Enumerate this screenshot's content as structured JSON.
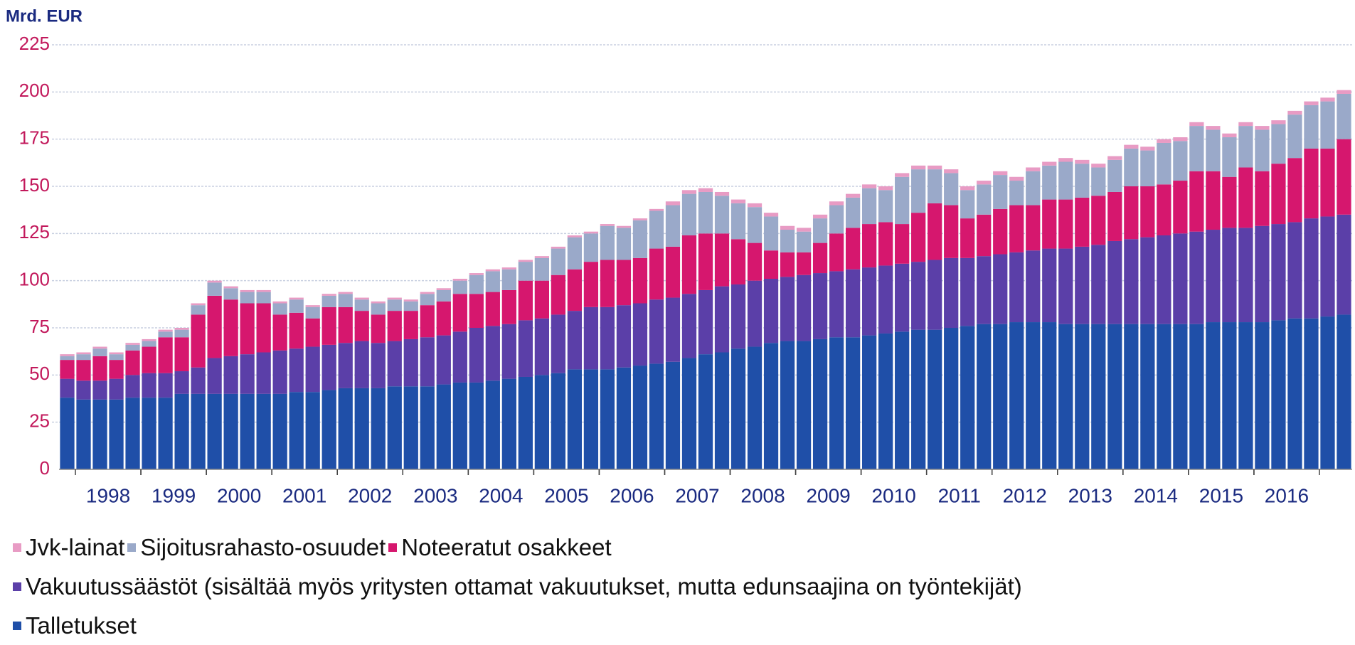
{
  "chart_data": {
    "type": "stacked_bar",
    "y_label": "Mrd. EUR",
    "ylim": [
      0,
      225
    ],
    "yticks": [
      0,
      25,
      50,
      75,
      100,
      125,
      150,
      175,
      200,
      225
    ],
    "grid": true,
    "categories": [
      null,
      "1998",
      null,
      null,
      null,
      "1999",
      null,
      null,
      null,
      "2000",
      null,
      null,
      null,
      "2001",
      null,
      null,
      null,
      "2002",
      null,
      null,
      null,
      "2003",
      null,
      null,
      null,
      "2004",
      null,
      null,
      null,
      "2005",
      null,
      null,
      null,
      "2006",
      null,
      null,
      null,
      "2007",
      null,
      null,
      null,
      "2008",
      null,
      null,
      null,
      "2009",
      null,
      null,
      null,
      "2010",
      null,
      null,
      null,
      "2011",
      null,
      null,
      null,
      "2012",
      null,
      null,
      null,
      "2013",
      null,
      null,
      null,
      "2014",
      null,
      null,
      null,
      "2015",
      null,
      null,
      null,
      "2016",
      null,
      null,
      null,
      null,
      null
    ],
    "series": [
      {
        "name": "Talletukset",
        "color": "#1f4fa8",
        "values": [
          38,
          37,
          37,
          37,
          38,
          38,
          38,
          40,
          40,
          40,
          40,
          40,
          40,
          40,
          41,
          41,
          42,
          43,
          43,
          43,
          44,
          44,
          44,
          45,
          46,
          46,
          47,
          48,
          49,
          50,
          51,
          53,
          53,
          53,
          54,
          55,
          56,
          57,
          59,
          61,
          62,
          64,
          65,
          67,
          68,
          68,
          69,
          70,
          70,
          71,
          72,
          73,
          74,
          74,
          75,
          76,
          77,
          77,
          78,
          78,
          78,
          77,
          77,
          77,
          77,
          77,
          77,
          77,
          77,
          77,
          78,
          78,
          78,
          78,
          79,
          80,
          80,
          81,
          82
        ]
      },
      {
        "name": "Vakuutussäästöt (sisältää myös yritysten ottamat vakuutukset, mutta edunsaajina on työntekijät)",
        "color": "#5b3fa8",
        "values": [
          10,
          10,
          10,
          11,
          12,
          13,
          13,
          12,
          14,
          19,
          20,
          21,
          22,
          23,
          23,
          24,
          24,
          24,
          25,
          24,
          24,
          25,
          26,
          26,
          27,
          29,
          29,
          29,
          30,
          30,
          31,
          31,
          33,
          33,
          33,
          33,
          34,
          34,
          34,
          34,
          35,
          34,
          35,
          34,
          34,
          35,
          35,
          35,
          36,
          36,
          36,
          36,
          36,
          37,
          37,
          36,
          36,
          37,
          37,
          38,
          39,
          40,
          41,
          42,
          44,
          45,
          46,
          47,
          48,
          49,
          49,
          50,
          50,
          51,
          51,
          51,
          53,
          53,
          53
        ]
      },
      {
        "name": "Noteeratut osakkeet",
        "color": "#d6176e",
        "values": [
          10,
          11,
          13,
          10,
          13,
          14,
          19,
          18,
          28,
          33,
          30,
          27,
          26,
          19,
          19,
          15,
          20,
          19,
          16,
          15,
          16,
          15,
          17,
          18,
          20,
          18,
          18,
          18,
          21,
          20,
          21,
          22,
          24,
          25,
          24,
          24,
          27,
          27,
          31,
          30,
          28,
          24,
          20,
          15,
          13,
          12,
          16,
          20,
          22,
          23,
          23,
          21,
          26,
          30,
          28,
          21,
          22,
          24,
          25,
          24,
          26,
          26,
          26,
          26,
          26,
          28,
          27,
          27,
          28,
          32,
          31,
          27,
          32,
          29,
          32,
          34,
          37,
          36,
          40
        ]
      },
      {
        "name": "Sijoitusrahasto-osuudet",
        "color": "#9aa9c9",
        "values": [
          2,
          3,
          4,
          3,
          3,
          3,
          3,
          4,
          5,
          7,
          6,
          6,
          6,
          6,
          7,
          6,
          6,
          7,
          6,
          6,
          6,
          5,
          6,
          6,
          7,
          10,
          11,
          11,
          10,
          12,
          14,
          17,
          15,
          18,
          17,
          20,
          20,
          22,
          22,
          22,
          20,
          19,
          19,
          18,
          12,
          11,
          13,
          15,
          16,
          19,
          17,
          25,
          23,
          18,
          17,
          15,
          16,
          18,
          13,
          18,
          18,
          20,
          18,
          15,
          17,
          20,
          19,
          22,
          21,
          24,
          22,
          21,
          22,
          22,
          21,
          23,
          23,
          25,
          24
        ]
      },
      {
        "name": "Jvk-lainat",
        "color": "#e89bc4",
        "values": [
          1,
          1,
          1,
          1,
          1,
          1,
          1,
          1,
          1,
          1,
          1,
          1,
          1,
          1,
          1,
          1,
          1,
          1,
          1,
          1,
          1,
          1,
          1,
          1,
          1,
          1,
          1,
          1,
          1,
          1,
          1,
          1,
          1,
          1,
          1,
          1,
          1,
          2,
          2,
          2,
          2,
          2,
          2,
          2,
          2,
          2,
          2,
          2,
          2,
          2,
          2,
          2,
          2,
          2,
          2,
          2,
          2,
          2,
          2,
          2,
          2,
          2,
          2,
          2,
          2,
          2,
          2,
          2,
          2,
          2,
          2,
          2,
          2,
          2,
          2,
          2,
          2,
          2,
          2
        ]
      }
    ]
  }
}
